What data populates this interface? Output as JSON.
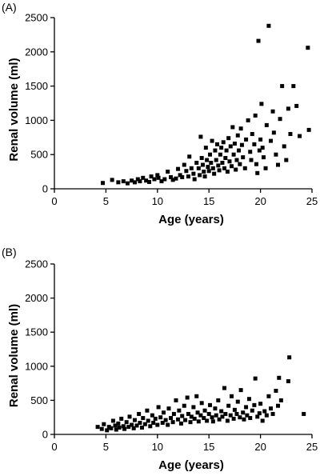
{
  "chart_data": [
    {
      "type": "scatter",
      "panel_label": "(A)",
      "xlabel": "Age (years)",
      "ylabel": "Renal volume (ml)",
      "xlim": [
        0,
        25
      ],
      "ylim": [
        0,
        2500
      ],
      "xticks": [
        0,
        5,
        10,
        15,
        20,
        25
      ],
      "yticks": [
        0,
        500,
        1000,
        1500,
        2000,
        2500
      ],
      "grid": false,
      "legend": "none",
      "marker": "square",
      "points": [
        [
          4.7,
          85
        ],
        [
          5.6,
          130
        ],
        [
          6.2,
          95
        ],
        [
          6.7,
          110
        ],
        [
          7.1,
          80
        ],
        [
          7.5,
          120
        ],
        [
          7.8,
          95
        ],
        [
          8.1,
          140
        ],
        [
          8.3,
          110
        ],
        [
          8.6,
          160
        ],
        [
          8.9,
          120
        ],
        [
          9.2,
          100
        ],
        [
          9.4,
          180
        ],
        [
          9.7,
          140
        ],
        [
          10.0,
          200
        ],
        [
          10.1,
          160
        ],
        [
          10.4,
          110
        ],
        [
          10.7,
          140
        ],
        [
          11.0,
          250
        ],
        [
          11.3,
          170
        ],
        [
          11.5,
          130
        ],
        [
          11.8,
          150
        ],
        [
          12.0,
          290
        ],
        [
          12.2,
          200
        ],
        [
          12.4,
          170
        ],
        [
          12.6,
          350
        ],
        [
          12.8,
          260
        ],
        [
          13.0,
          180
        ],
        [
          13.1,
          470
        ],
        [
          13.3,
          300
        ],
        [
          13.5,
          220
        ],
        [
          13.6,
          140
        ],
        [
          13.8,
          380
        ],
        [
          14.0,
          300
        ],
        [
          14.1,
          200
        ],
        [
          14.2,
          760
        ],
        [
          14.3,
          450
        ],
        [
          14.4,
          350
        ],
        [
          14.5,
          250
        ],
        [
          14.6,
          180
        ],
        [
          14.7,
          600
        ],
        [
          14.8,
          420
        ],
        [
          14.9,
          320
        ],
        [
          15.0,
          260
        ],
        [
          15.1,
          500
        ],
        [
          15.2,
          380
        ],
        [
          15.3,
          700
        ],
        [
          15.4,
          300
        ],
        [
          15.5,
          220
        ],
        [
          15.6,
          560
        ],
        [
          15.7,
          420
        ],
        [
          15.8,
          650
        ],
        [
          15.9,
          340
        ],
        [
          16.0,
          270
        ],
        [
          16.1,
          500
        ],
        [
          16.2,
          600
        ],
        [
          16.3,
          380
        ],
        [
          16.4,
          680
        ],
        [
          16.5,
          300
        ],
        [
          16.6,
          450
        ],
        [
          16.7,
          560
        ],
        [
          16.8,
          250
        ],
        [
          16.9,
          740
        ],
        [
          17.0,
          400
        ],
        [
          17.1,
          620
        ],
        [
          17.2,
          330
        ],
        [
          17.3,
          900
        ],
        [
          17.4,
          500
        ],
        [
          17.5,
          660
        ],
        [
          17.6,
          280
        ],
        [
          17.7,
          420
        ],
        [
          17.8,
          780
        ],
        [
          17.9,
          560
        ],
        [
          18.0,
          360
        ],
        [
          18.1,
          880
        ],
        [
          18.2,
          640
        ],
        [
          18.3,
          460
        ],
        [
          18.5,
          300
        ],
        [
          18.6,
          720
        ],
        [
          18.8,
          1000
        ],
        [
          19.0,
          540
        ],
        [
          19.1,
          420
        ],
        [
          19.2,
          800
        ],
        [
          19.4,
          650
        ],
        [
          19.5,
          1070
        ],
        [
          19.6,
          360
        ],
        [
          19.7,
          230
        ],
        [
          19.8,
          2160
        ],
        [
          19.9,
          560
        ],
        [
          20.0,
          720
        ],
        [
          20.1,
          1240
        ],
        [
          20.2,
          600
        ],
        [
          20.3,
          460
        ],
        [
          20.5,
          300
        ],
        [
          20.6,
          930
        ],
        [
          20.8,
          2380
        ],
        [
          21.0,
          700
        ],
        [
          21.2,
          1130
        ],
        [
          21.3,
          820
        ],
        [
          21.5,
          500
        ],
        [
          21.7,
          350
        ],
        [
          21.9,
          1020
        ],
        [
          22.1,
          1500
        ],
        [
          22.3,
          620
        ],
        [
          22.5,
          420
        ],
        [
          22.7,
          1170
        ],
        [
          22.9,
          800
        ],
        [
          23.2,
          1500
        ],
        [
          23.5,
          1210
        ],
        [
          23.8,
          770
        ],
        [
          24.6,
          2060
        ],
        [
          24.7,
          860
        ]
      ]
    },
    {
      "type": "scatter",
      "panel_label": "(B)",
      "xlabel": "Age (years)",
      "ylabel": "Renal volume (ml)",
      "xlim": [
        0,
        25
      ],
      "ylim": [
        0,
        2500
      ],
      "xticks": [
        0,
        5,
        10,
        15,
        20,
        25
      ],
      "yticks": [
        0,
        500,
        1000,
        1500,
        2000,
        2500
      ],
      "grid": false,
      "legend": "none",
      "marker": "square",
      "points": [
        [
          4.2,
          110
        ],
        [
          4.6,
          80
        ],
        [
          4.8,
          150
        ],
        [
          5.1,
          60
        ],
        [
          5.3,
          110
        ],
        [
          5.5,
          90
        ],
        [
          5.7,
          200
        ],
        [
          5.9,
          130
        ],
        [
          6.0,
          70
        ],
        [
          6.2,
          160
        ],
        [
          6.3,
          100
        ],
        [
          6.5,
          230
        ],
        [
          6.7,
          120
        ],
        [
          6.8,
          80
        ],
        [
          7.0,
          180
        ],
        [
          7.2,
          110
        ],
        [
          7.3,
          260
        ],
        [
          7.5,
          140
        ],
        [
          7.7,
          90
        ],
        [
          7.8,
          210
        ],
        [
          8.0,
          130
        ],
        [
          8.2,
          300
        ],
        [
          8.3,
          170
        ],
        [
          8.5,
          100
        ],
        [
          8.6,
          240
        ],
        [
          8.8,
          150
        ],
        [
          9.0,
          350
        ],
        [
          9.1,
          200
        ],
        [
          9.3,
          120
        ],
        [
          9.5,
          280
        ],
        [
          9.6,
          170
        ],
        [
          9.8,
          230
        ],
        [
          10.0,
          140
        ],
        [
          10.1,
          400
        ],
        [
          10.3,
          250
        ],
        [
          10.5,
          170
        ],
        [
          10.6,
          320
        ],
        [
          10.8,
          210
        ],
        [
          11.0,
          140
        ],
        [
          11.1,
          380
        ],
        [
          11.3,
          240
        ],
        [
          11.5,
          180
        ],
        [
          11.6,
          300
        ],
        [
          11.8,
          500
        ],
        [
          12.0,
          220
        ],
        [
          12.1,
          350
        ],
        [
          12.3,
          160
        ],
        [
          12.4,
          270
        ],
        [
          12.6,
          420
        ],
        [
          12.7,
          210
        ],
        [
          12.9,
          540
        ],
        [
          13.0,
          300
        ],
        [
          13.2,
          180
        ],
        [
          13.3,
          260
        ],
        [
          13.5,
          400
        ],
        [
          13.6,
          230
        ],
        [
          13.8,
          560
        ],
        [
          13.9,
          320
        ],
        [
          14.0,
          190
        ],
        [
          14.2,
          280
        ],
        [
          14.3,
          460
        ],
        [
          14.5,
          240
        ],
        [
          14.6,
          350
        ],
        [
          14.8,
          200
        ],
        [
          15.0,
          300
        ],
        [
          15.1,
          430
        ],
        [
          15.3,
          250
        ],
        [
          15.4,
          190
        ],
        [
          15.6,
          380
        ],
        [
          15.7,
          280
        ],
        [
          15.9,
          500
        ],
        [
          16.0,
          220
        ],
        [
          16.2,
          340
        ],
        [
          16.3,
          260
        ],
        [
          16.5,
          680
        ],
        [
          16.6,
          300
        ],
        [
          16.8,
          200
        ],
        [
          16.9,
          420
        ],
        [
          17.1,
          280
        ],
        [
          17.2,
          560
        ],
        [
          17.4,
          230
        ],
        [
          17.5,
          360
        ],
        [
          17.7,
          300
        ],
        [
          17.8,
          480
        ],
        [
          18.0,
          250
        ],
        [
          18.1,
          650
        ],
        [
          18.3,
          320
        ],
        [
          18.4,
          220
        ],
        [
          18.6,
          400
        ],
        [
          18.7,
          280
        ],
        [
          18.9,
          520
        ],
        [
          19.0,
          240
        ],
        [
          19.2,
          350
        ],
        [
          19.4,
          430
        ],
        [
          19.5,
          820
        ],
        [
          19.7,
          260
        ],
        [
          19.9,
          310
        ],
        [
          20.0,
          450
        ],
        [
          20.2,
          200
        ],
        [
          20.4,
          340
        ],
        [
          20.6,
          280
        ],
        [
          20.8,
          560
        ],
        [
          21.0,
          380
        ],
        [
          21.2,
          300
        ],
        [
          21.5,
          640
        ],
        [
          21.7,
          420
        ],
        [
          21.8,
          830
        ],
        [
          22.0,
          500
        ],
        [
          22.7,
          780
        ],
        [
          22.8,
          1130
        ],
        [
          24.2,
          300
        ]
      ]
    }
  ]
}
